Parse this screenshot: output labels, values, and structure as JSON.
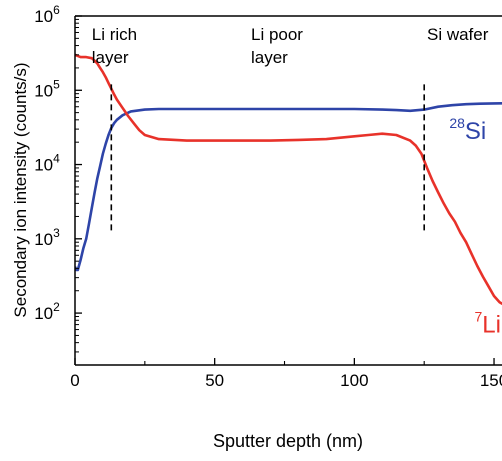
{
  "chart_data": {
    "type": "line",
    "xlabel": "Sputter depth (nm)",
    "ylabel": "Secondary ion intensity (counts/s)",
    "xlim": [
      0,
      155
    ],
    "ylim": [
      20,
      1000000
    ],
    "y_scale": "log",
    "grid": false,
    "x_ticks": [
      {
        "value": 0,
        "label": "0"
      },
      {
        "value": 50,
        "label": "50"
      },
      {
        "value": 100,
        "label": "100"
      },
      {
        "value": 150,
        "label": "150"
      }
    ],
    "y_ticks": [
      {
        "value": 100,
        "base": "10",
        "exp": "2"
      },
      {
        "value": 1000,
        "base": "10",
        "exp": "3"
      },
      {
        "value": 10000,
        "base": "10",
        "exp": "4"
      },
      {
        "value": 100000,
        "base": "10",
        "exp": "5"
      },
      {
        "value": 1000000,
        "base": "10",
        "exp": "6"
      }
    ],
    "region_labels": [
      {
        "lines": [
          "Li rich",
          "layer"
        ],
        "x": 6
      },
      {
        "lines": [
          "Li poor",
          "layer"
        ],
        "x": 63
      },
      {
        "lines": [
          "Si wafer"
        ],
        "x": 126
      }
    ],
    "dividers": [
      {
        "x": 13,
        "y_from": 1300,
        "y_to": 120000
      },
      {
        "x": 125,
        "y_from": 1300,
        "y_to": 120000
      }
    ],
    "series": [
      {
        "name_mass": "28",
        "name_element": "Si",
        "color": "#2e44a8",
        "label_at": {
          "x": 134,
          "y": 22000
        },
        "x": [
          0,
          0.5,
          1,
          2,
          3,
          4,
          5,
          6,
          7,
          8,
          9,
          10,
          11,
          12,
          13,
          14,
          15,
          17,
          20,
          25,
          30,
          40,
          50,
          60,
          70,
          80,
          90,
          100,
          110,
          115,
          120,
          125,
          130,
          135,
          140,
          145,
          150,
          155
        ],
        "y": [
          420,
          380,
          380,
          520,
          750,
          1000,
          1600,
          2600,
          4200,
          6500,
          9500,
          14000,
          19000,
          25000,
          31000,
          36000,
          40000,
          46000,
          52000,
          55000,
          56000,
          56000,
          56000,
          56000,
          56000,
          56000,
          56000,
          56000,
          55000,
          54000,
          53000,
          55000,
          60000,
          63000,
          65000,
          66000,
          66500,
          67000
        ]
      },
      {
        "name_mass": "7",
        "name_element": "Li",
        "color": "#e8322a",
        "label_at": {
          "x": 143,
          "y": 55
        },
        "x": [
          0,
          2,
          4,
          6,
          7,
          8,
          9,
          10,
          11,
          12,
          13,
          14,
          15,
          17,
          19,
          21,
          23,
          25,
          30,
          40,
          50,
          60,
          70,
          80,
          90,
          100,
          105,
          110,
          115,
          120,
          122,
          124,
          126,
          128,
          130,
          132,
          134,
          136,
          138,
          140,
          142,
          144,
          146,
          148,
          150,
          152,
          155
        ],
        "y": [
          300000,
          280000,
          280000,
          270000,
          250000,
          230000,
          200000,
          175000,
          150000,
          125000,
          105000,
          88000,
          75000,
          58000,
          45000,
          36000,
          29000,
          25000,
          22000,
          21000,
          21000,
          21000,
          21000,
          21500,
          22000,
          24000,
          25000,
          26000,
          25000,
          21000,
          18000,
          14000,
          9000,
          6000,
          4200,
          3000,
          2200,
          1700,
          1200,
          900,
          620,
          430,
          310,
          230,
          170,
          140,
          120
        ]
      }
    ]
  }
}
